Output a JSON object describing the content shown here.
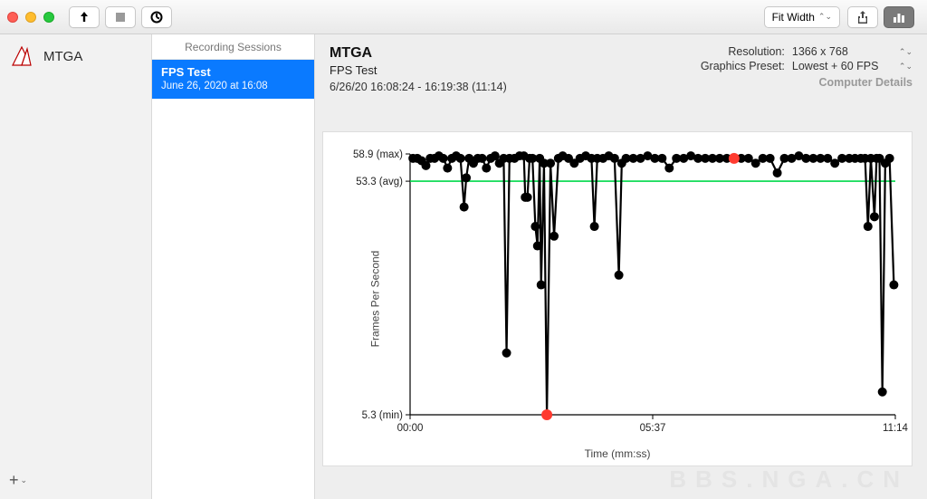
{
  "titlebar": {
    "fit_label": "Fit Width"
  },
  "sidebar_left": {
    "app_name": "MTGA"
  },
  "sessions": {
    "header": "Recording Sessions",
    "items": [
      {
        "title": "FPS Test",
        "subtitle": "June 26, 2020 at 16:08"
      }
    ]
  },
  "header": {
    "title": "MTGA",
    "subtitle": "FPS Test",
    "time_range": "6/26/20 16:08:24 - 16:19:38 (11:14)",
    "rows": [
      {
        "k": "Resolution:",
        "v": "1366 x 768"
      },
      {
        "k": "Graphics Preset:",
        "v": "Lowest + 60 FPS"
      }
    ],
    "details": "Computer Details"
  },
  "chart": {
    "type": "line+scatter",
    "ylabel": "Frames Per Second",
    "xlabel": "Time (mm:ss)",
    "background_color": "#ffffff",
    "axis_color": "#000000",
    "line_color": "#000000",
    "marker_color": "#000000",
    "highlight_marker_color": "#ff3b30",
    "avg_line_color": "#00d84a",
    "line_width": 2.2,
    "marker_radius": 5,
    "highlight_marker_radius": 6,
    "ylim": [
      5.3,
      58.9
    ],
    "y_ticks": [
      {
        "v": 58.9,
        "label": "58.9 (max)"
      },
      {
        "v": 53.3,
        "label": "53.3 (avg)"
      },
      {
        "v": 5.3,
        "label": "5.3 (min)"
      }
    ],
    "x_total_seconds": 674,
    "x_ticks": [
      {
        "sec": 0,
        "label": "00:00"
      },
      {
        "sec": 337,
        "label": "05:37"
      },
      {
        "sec": 674,
        "label": "11:14"
      }
    ],
    "avg_value": 53.3,
    "points": [
      {
        "t": 4,
        "fps": 58
      },
      {
        "t": 10,
        "fps": 58
      },
      {
        "t": 16,
        "fps": 57.5
      },
      {
        "t": 22,
        "fps": 56.5
      },
      {
        "t": 28,
        "fps": 58
      },
      {
        "t": 34,
        "fps": 58
      },
      {
        "t": 40,
        "fps": 58.5
      },
      {
        "t": 46,
        "fps": 58
      },
      {
        "t": 52,
        "fps": 56
      },
      {
        "t": 58,
        "fps": 58
      },
      {
        "t": 64,
        "fps": 58.5
      },
      {
        "t": 70,
        "fps": 58
      },
      {
        "t": 75,
        "fps": 48
      },
      {
        "t": 78,
        "fps": 54
      },
      {
        "t": 82,
        "fps": 58
      },
      {
        "t": 88,
        "fps": 57
      },
      {
        "t": 94,
        "fps": 58
      },
      {
        "t": 100,
        "fps": 58
      },
      {
        "t": 106,
        "fps": 56
      },
      {
        "t": 112,
        "fps": 58
      },
      {
        "t": 118,
        "fps": 58.5
      },
      {
        "t": 124,
        "fps": 57
      },
      {
        "t": 130,
        "fps": 58
      },
      {
        "t": 134,
        "fps": 18
      },
      {
        "t": 138,
        "fps": 58
      },
      {
        "t": 145,
        "fps": 58
      },
      {
        "t": 152,
        "fps": 58.5
      },
      {
        "t": 158,
        "fps": 58.5
      },
      {
        "t": 160,
        "fps": 50
      },
      {
        "t": 163,
        "fps": 50
      },
      {
        "t": 166,
        "fps": 58
      },
      {
        "t": 170,
        "fps": 58
      },
      {
        "t": 174,
        "fps": 44
      },
      {
        "t": 177,
        "fps": 40
      },
      {
        "t": 180,
        "fps": 58
      },
      {
        "t": 182,
        "fps": 32
      },
      {
        "t": 186,
        "fps": 57
      },
      {
        "t": 190,
        "fps": 5.3,
        "hl": true
      },
      {
        "t": 195,
        "fps": 57
      },
      {
        "t": 200,
        "fps": 42
      },
      {
        "t": 206,
        "fps": 58
      },
      {
        "t": 212,
        "fps": 58.5
      },
      {
        "t": 220,
        "fps": 58
      },
      {
        "t": 228,
        "fps": 57
      },
      {
        "t": 236,
        "fps": 58
      },
      {
        "t": 244,
        "fps": 58.5
      },
      {
        "t": 252,
        "fps": 58
      },
      {
        "t": 256,
        "fps": 44
      },
      {
        "t": 260,
        "fps": 58
      },
      {
        "t": 268,
        "fps": 58
      },
      {
        "t": 276,
        "fps": 58.5
      },
      {
        "t": 284,
        "fps": 58
      },
      {
        "t": 290,
        "fps": 34
      },
      {
        "t": 294,
        "fps": 57
      },
      {
        "t": 300,
        "fps": 58
      },
      {
        "t": 310,
        "fps": 58
      },
      {
        "t": 320,
        "fps": 58
      },
      {
        "t": 330,
        "fps": 58.5
      },
      {
        "t": 340,
        "fps": 58
      },
      {
        "t": 350,
        "fps": 58
      },
      {
        "t": 360,
        "fps": 56
      },
      {
        "t": 370,
        "fps": 58
      },
      {
        "t": 380,
        "fps": 58
      },
      {
        "t": 390,
        "fps": 58.5
      },
      {
        "t": 400,
        "fps": 58
      },
      {
        "t": 410,
        "fps": 58
      },
      {
        "t": 420,
        "fps": 58
      },
      {
        "t": 430,
        "fps": 58
      },
      {
        "t": 440,
        "fps": 58
      },
      {
        "t": 450,
        "fps": 58,
        "hl": true
      },
      {
        "t": 460,
        "fps": 58
      },
      {
        "t": 470,
        "fps": 58
      },
      {
        "t": 480,
        "fps": 57
      },
      {
        "t": 490,
        "fps": 58
      },
      {
        "t": 500,
        "fps": 58
      },
      {
        "t": 510,
        "fps": 55
      },
      {
        "t": 520,
        "fps": 58
      },
      {
        "t": 530,
        "fps": 58
      },
      {
        "t": 540,
        "fps": 58.5
      },
      {
        "t": 550,
        "fps": 58
      },
      {
        "t": 560,
        "fps": 58
      },
      {
        "t": 570,
        "fps": 58
      },
      {
        "t": 580,
        "fps": 58
      },
      {
        "t": 590,
        "fps": 57
      },
      {
        "t": 600,
        "fps": 58
      },
      {
        "t": 610,
        "fps": 58
      },
      {
        "t": 618,
        "fps": 58
      },
      {
        "t": 626,
        "fps": 58
      },
      {
        "t": 632,
        "fps": 58
      },
      {
        "t": 636,
        "fps": 44
      },
      {
        "t": 640,
        "fps": 58
      },
      {
        "t": 645,
        "fps": 46
      },
      {
        "t": 648,
        "fps": 58
      },
      {
        "t": 652,
        "fps": 58
      },
      {
        "t": 656,
        "fps": 10
      },
      {
        "t": 660,
        "fps": 57
      },
      {
        "t": 666,
        "fps": 58
      },
      {
        "t": 672,
        "fps": 32
      }
    ]
  },
  "watermark": "BBS.NGA.CN"
}
